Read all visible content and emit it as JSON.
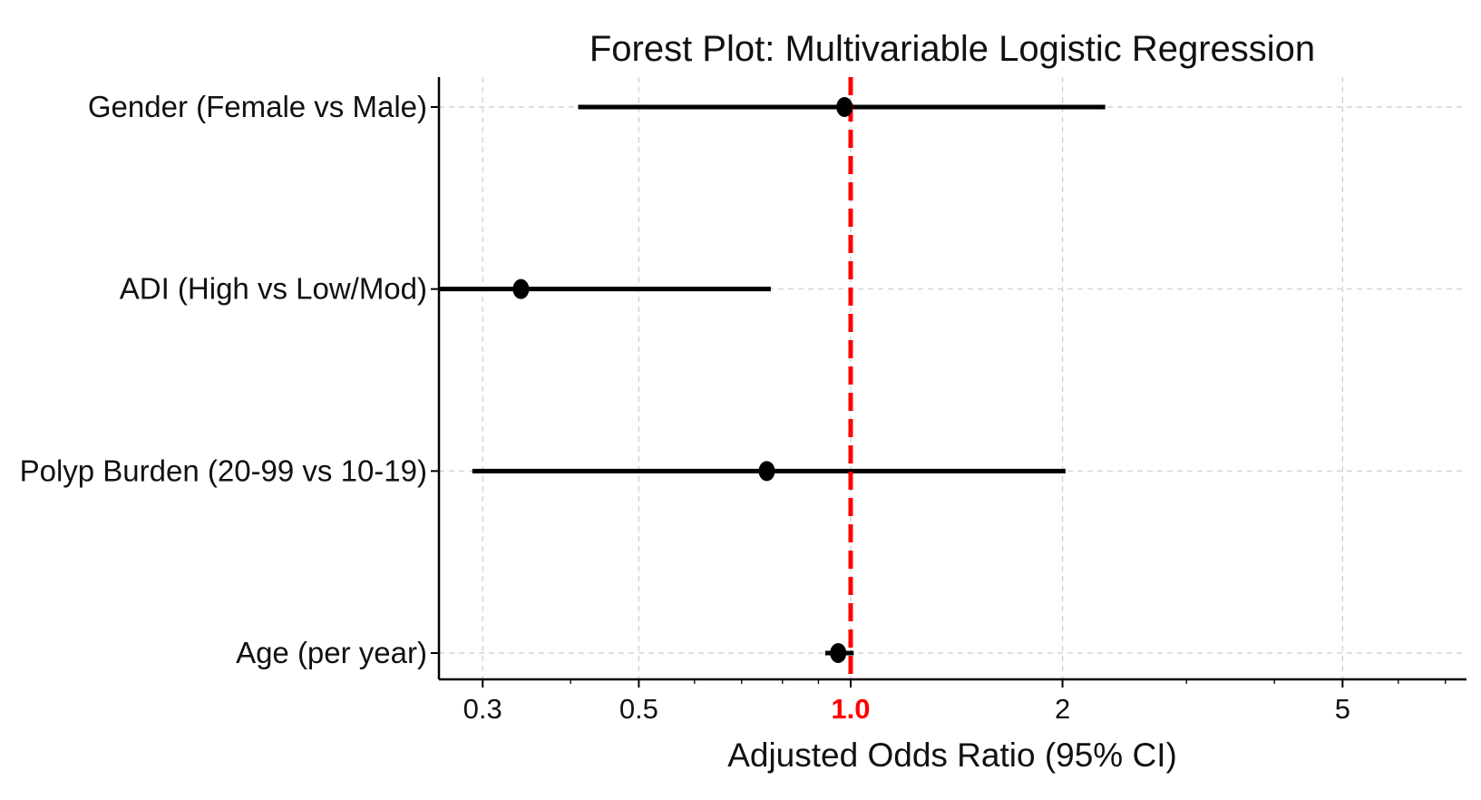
{
  "chart_data": {
    "type": "forest",
    "title": "Forest Plot: Multivariable Logistic Regression",
    "xlabel": "Adjusted Odds Ratio (95% CI)",
    "ylabel": "",
    "xscale": "log",
    "xlim": [
      0.26,
      7.5
    ],
    "grid": true,
    "x_ticks": [
      {
        "value": 0.3,
        "label": "0.3"
      },
      {
        "value": 0.5,
        "label": "0.5"
      },
      {
        "value": 1.0,
        "label": "1.0",
        "highlight": true
      },
      {
        "value": 2,
        "label": "2"
      },
      {
        "value": 5,
        "label": "5"
      }
    ],
    "reference_line": {
      "value": 1.0,
      "style": "dashed",
      "color": "#ff0000"
    },
    "rows": [
      {
        "label": "Gender (Female vs Male)",
        "or": 0.98,
        "ci_low": 0.41,
        "ci_high": 2.3
      },
      {
        "label": "ADI (High vs Low/Mod)",
        "or": 0.34,
        "ci_low": 0.26,
        "ci_high": 0.77
      },
      {
        "label": "Polyp Burden (20-99 vs 10-19)",
        "or": 0.76,
        "ci_low": 0.29,
        "ci_high": 2.02
      },
      {
        "label": "Age (per year)",
        "or": 0.96,
        "ci_low": 0.92,
        "ci_high": 1.01
      }
    ],
    "colors": {
      "marker": "#000000",
      "ci": "#000000",
      "reference": "#ff0000",
      "grid": "#cccccc"
    }
  }
}
